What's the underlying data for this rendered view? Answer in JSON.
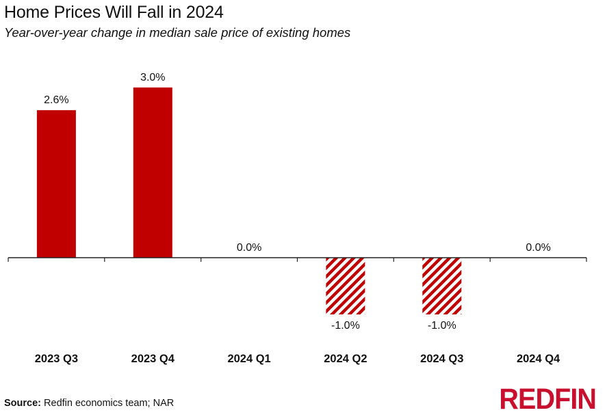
{
  "header": {
    "title": "Home Prices Will Fall in 2024",
    "subtitle": "Year-over-year change in median sale price of existing homes"
  },
  "footer": {
    "source_label": "Source:",
    "source_text": " Redfin economics team; NAR",
    "logo_text": "REDFIN"
  },
  "colors": {
    "bar": "#c00000",
    "logo": "#c8102e",
    "axis": "#222222",
    "text": "#111111"
  },
  "chart_data": {
    "type": "bar",
    "title": "Home Prices Will Fall in 2024",
    "subtitle": "Year-over-year change in median sale price of existing homes",
    "categories": [
      "2023 Q3",
      "2023 Q4",
      "2024 Q1",
      "2024 Q2",
      "2024 Q3",
      "2024 Q4"
    ],
    "values": [
      2.6,
      3.0,
      0.0,
      -1.0,
      -1.0,
      0.0
    ],
    "data_labels": [
      "2.6%",
      "3.0%",
      "0.0%",
      "-1.0%",
      "-1.0%",
      "0.0%"
    ],
    "pattern": [
      "solid",
      "solid",
      "solid",
      "hatched",
      "hatched",
      "solid"
    ],
    "xlabel": "",
    "ylabel": "",
    "ylim": [
      -1.4,
      3.4
    ],
    "grid": false,
    "legend": "none"
  }
}
